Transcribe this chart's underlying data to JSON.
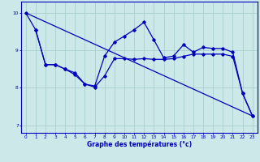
{
  "xlabel": "Graphe des températures (°c)",
  "x_ticks": [
    0,
    1,
    2,
    3,
    4,
    5,
    6,
    7,
    8,
    9,
    10,
    11,
    12,
    13,
    14,
    15,
    16,
    17,
    18,
    19,
    20,
    21,
    22,
    23
  ],
  "ylim": [
    6.8,
    10.3
  ],
  "xlim": [
    -0.5,
    23.5
  ],
  "yticks": [
    7,
    8,
    9,
    10
  ],
  "background_color": "#cce8e8",
  "line_color": "#0000bb",
  "grid_color": "#aacfcf",
  "line1_x": [
    0,
    1,
    2,
    3,
    4,
    5,
    6,
    7,
    8,
    9,
    10,
    11,
    12,
    13,
    14,
    15,
    16,
    17,
    18,
    19,
    20,
    21,
    22,
    23
  ],
  "line1_y": [
    10.0,
    9.55,
    8.62,
    8.62,
    8.5,
    8.4,
    8.1,
    8.02,
    8.32,
    8.78,
    8.78,
    8.76,
    8.78,
    8.76,
    8.76,
    8.78,
    8.84,
    8.9,
    8.9,
    8.9,
    8.9,
    8.84,
    7.85,
    7.25
  ],
  "line2_x": [
    1,
    2,
    3,
    4,
    5,
    6,
    7,
    8,
    9,
    10,
    11,
    12,
    13,
    14,
    15,
    16,
    17,
    18,
    19,
    20,
    21,
    22,
    23
  ],
  "line2_y": [
    9.55,
    8.62,
    8.62,
    8.5,
    8.35,
    8.1,
    8.05,
    8.85,
    9.22,
    9.38,
    9.55,
    9.75,
    9.28,
    8.8,
    8.85,
    9.15,
    8.95,
    9.08,
    9.05,
    9.05,
    8.95,
    7.85,
    7.25
  ],
  "line3_x": [
    0,
    23
  ],
  "line3_y": [
    10.0,
    7.25
  ]
}
